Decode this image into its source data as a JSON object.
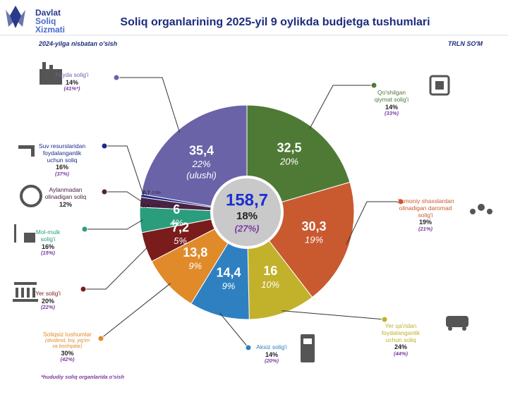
{
  "logo": [
    "Davlat",
    "Soliq",
    "Xizmati"
  ],
  "chart_data": {
    "type": "pie",
    "title": "Soliq organlarining 2025-yil 9 oylikda budjetga tushumlari",
    "subtitle": "2024-yilga nisbatan o'sish",
    "unit": "TRLN SO'M",
    "categories": [
      "Qo'shilgan\nqiymat solig'i",
      "Jismoniy shaxslardan\nolinadigan daromad\nsolig'i",
      "Yer qa'ridan\nfoydalanganlik\nuchun soliq",
      "Aksiz solig'i",
      "Soliqsiz tushumlar",
      "Yer solig'i",
      "Mol-mulk\nsolig'i",
      "Aylanmadan\nolinadigan soliq",
      "Suv resurslaridan\nfoydalanganlik\nuchun soliq",
      "Foyda solig'i"
    ],
    "values": [
      32.5,
      30.3,
      16,
      14.4,
      13.8,
      7.2,
      6,
      2.4,
      0.7,
      35.4
    ],
    "value_labels": [
      "32,5",
      "30,3",
      "16",
      "14,4",
      "13,8",
      "7,2",
      "6",
      "2,4",
      "0,7",
      "35,4"
    ],
    "shares": [
      20,
      19,
      10,
      9,
      9,
      5,
      4,
      1.5,
      0.5,
      22
    ],
    "share_labels": [
      "20%",
      "19%",
      "10%",
      "9%",
      "9%",
      "5%",
      "4%",
      "1,5%",
      "0,5%",
      "22%"
    ],
    "share_note": "(ulushi)",
    "colors": [
      "#4e7a35",
      "#c95a30",
      "#c2b12a",
      "#2f80c0",
      "#e08a2a",
      "#7a1c1c",
      "#2a9d7c",
      "#4a2344",
      "#1c2a8c",
      "#6a63a8"
    ],
    "growth": [
      14,
      19,
      24,
      14,
      30,
      20,
      16,
      12,
      16,
      14
    ],
    "growth_labels": [
      "14%",
      "19%",
      "24%",
      "14%",
      "30%",
      "20%",
      "16%",
      "12%",
      "16%",
      "14%"
    ],
    "growth_2024": [
      33,
      21,
      44,
      20,
      42,
      22,
      15,
      null,
      37,
      41
    ],
    "growth_2024_labels": [
      "(33%)",
      "(21%)",
      "(44%)",
      "(20%)",
      "(42%)",
      "(22%)",
      "(15%)",
      null,
      "(37%)",
      "(41%*)"
    ],
    "category_notes": [
      null,
      null,
      null,
      null,
      "(dividend, boj, yig'im\nva boshqalar)",
      null,
      null,
      null,
      null,
      null
    ],
    "total": 158.7,
    "total_label": "158,7",
    "total_growth": 18,
    "total_growth_label": "18%",
    "total_growth_2024": 27,
    "total_growth_2024_label": "(27%)",
    "footnote": "*hududiy soliq organlarida o'sish"
  }
}
